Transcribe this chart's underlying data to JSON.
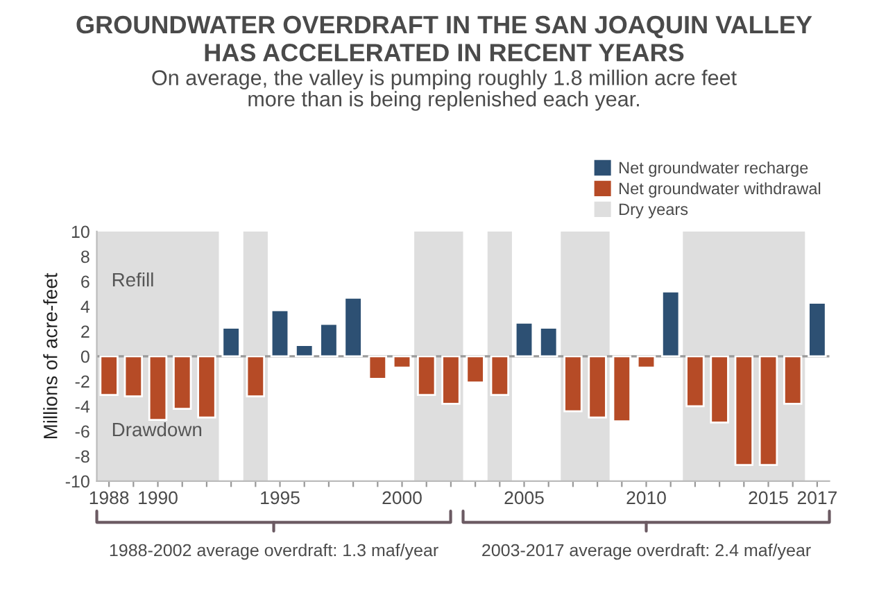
{
  "chart_data": {
    "type": "bar",
    "title": "GROUNDWATER OVERDRAFT IN THE SAN JOAQUIN VALLEY\nHAS ACCELERATED IN RECENT YEARS",
    "subtitle": "On average, the valley is pumping roughly 1.8 million acre feet\nmore than is being replenished each year.",
    "ylabel": "Millions of acre-feet",
    "x": [
      1988,
      1989,
      1990,
      1991,
      1992,
      1993,
      1994,
      1995,
      1996,
      1997,
      1998,
      1999,
      2000,
      2001,
      2002,
      2003,
      2004,
      2005,
      2006,
      2007,
      2008,
      2009,
      2010,
      2011,
      2012,
      2013,
      2014,
      2015,
      2016,
      2017
    ],
    "series": [
      {
        "name": "Net groundwater recharge",
        "color": "#2d5073",
        "values": [
          null,
          null,
          null,
          null,
          null,
          2.3,
          null,
          3.7,
          0.9,
          2.6,
          4.7,
          null,
          null,
          null,
          null,
          null,
          null,
          2.7,
          2.3,
          null,
          null,
          null,
          null,
          5.2,
          null,
          null,
          null,
          null,
          null,
          4.3
        ]
      },
      {
        "name": "Net groundwater withdrawal",
        "color": "#b64b26",
        "values": [
          -3.1,
          -3.2,
          -5.1,
          -4.2,
          -4.9,
          null,
          -3.2,
          null,
          null,
          null,
          null,
          -1.8,
          -0.9,
          -3.1,
          -3.8,
          -2.1,
          -3.1,
          null,
          null,
          -4.4,
          -4.9,
          -5.2,
          -0.9,
          null,
          -4.0,
          -5.3,
          -8.7,
          -8.7,
          -3.8,
          null
        ]
      }
    ],
    "xlim": [
      1987.5,
      2017.5
    ],
    "xticks": [
      1988,
      {
        "value": 1989,
        "label": null
      },
      1990,
      {
        "value": 1991,
        "label": null
      },
      {
        "value": 1992,
        "label": null
      },
      {
        "value": 1993,
        "label": null
      },
      {
        "value": 1994,
        "label": null
      },
      1995,
      {
        "value": 1996,
        "label": null
      },
      {
        "value": 1997,
        "label": null
      },
      {
        "value": 1998,
        "label": null
      },
      {
        "value": 1999,
        "label": null
      },
      2000,
      {
        "value": 2001,
        "label": null
      },
      {
        "value": 2002,
        "label": null
      },
      {
        "value": 2003,
        "label": null
      },
      {
        "value": 2004,
        "label": null
      },
      2005,
      {
        "value": 2006,
        "label": null
      },
      {
        "value": 2007,
        "label": null
      },
      {
        "value": 2008,
        "label": null
      },
      {
        "value": 2009,
        "label": null
      },
      2010,
      {
        "value": 2011,
        "label": null
      },
      {
        "value": 2012,
        "label": null
      },
      {
        "value": 2013,
        "label": null
      },
      {
        "value": 2014,
        "label": null
      },
      2015,
      {
        "value": 2016,
        "label": null
      },
      2017
    ],
    "ylim": [
      -10,
      10
    ],
    "yticks": [
      -10,
      -8,
      -6,
      -4,
      -2,
      0,
      2,
      4,
      6,
      8,
      10
    ],
    "bands": [
      {
        "axis": "x",
        "from": 1987.5,
        "to": 1992.5,
        "color": "#dedede",
        "label": "Dry years"
      },
      {
        "axis": "x",
        "from": 1993.5,
        "to": 1994.5,
        "color": "#dedede"
      },
      {
        "axis": "x",
        "from": 2000.5,
        "to": 2002.5,
        "color": "#dedede"
      },
      {
        "axis": "x",
        "from": 2003.5,
        "to": 2004.5,
        "color": "#dedede"
      },
      {
        "axis": "x",
        "from": 2006.5,
        "to": 2008.5,
        "color": "#dedede"
      },
      {
        "axis": "x",
        "from": 2011.5,
        "to": 2016.5,
        "color": "#dedede"
      }
    ],
    "ref_lines": [
      {
        "axis": "y",
        "value": 0,
        "color": "#9a9a9a"
      }
    ],
    "annotations": [
      "Refill",
      "Drawdown",
      "1988-2002 average overdraft: 1.3 maf/year",
      "2003-2017 average overdraft: 2.4 maf/year"
    ],
    "legend": "top right",
    "grid": false
  }
}
